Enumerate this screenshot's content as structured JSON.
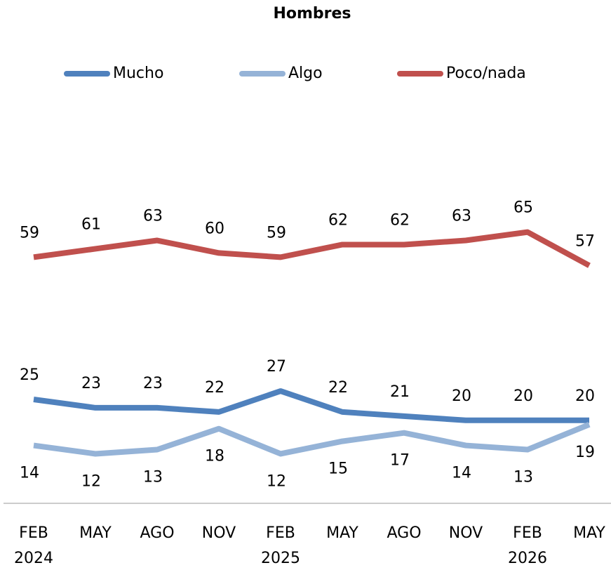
{
  "chart_data": {
    "type": "line",
    "title": "Hombres",
    "categories": [
      "FEB\n2024",
      "MAY",
      "AGO",
      "NOV",
      "FEB\n2025",
      "MAY",
      "AGO",
      "NOV",
      "FEB\n2026",
      "MAY"
    ],
    "series": [
      {
        "name": "Mucho",
        "color": "#4f81bd",
        "values": [
          25,
          23,
          23,
          22,
          27,
          22,
          21,
          20,
          20,
          20
        ],
        "label_position": "above"
      },
      {
        "name": "Algo",
        "color": "#95b3d7",
        "values": [
          14,
          12,
          13,
          18,
          12,
          15,
          17,
          14,
          13,
          19
        ],
        "label_position": "below"
      },
      {
        "name": "Poco/nada",
        "color": "#c0504d",
        "values": [
          59,
          61,
          63,
          60,
          59,
          62,
          62,
          63,
          65,
          57
        ],
        "label_position": "above"
      }
    ],
    "ylim": [
      0,
      100
    ],
    "legend": "top"
  }
}
